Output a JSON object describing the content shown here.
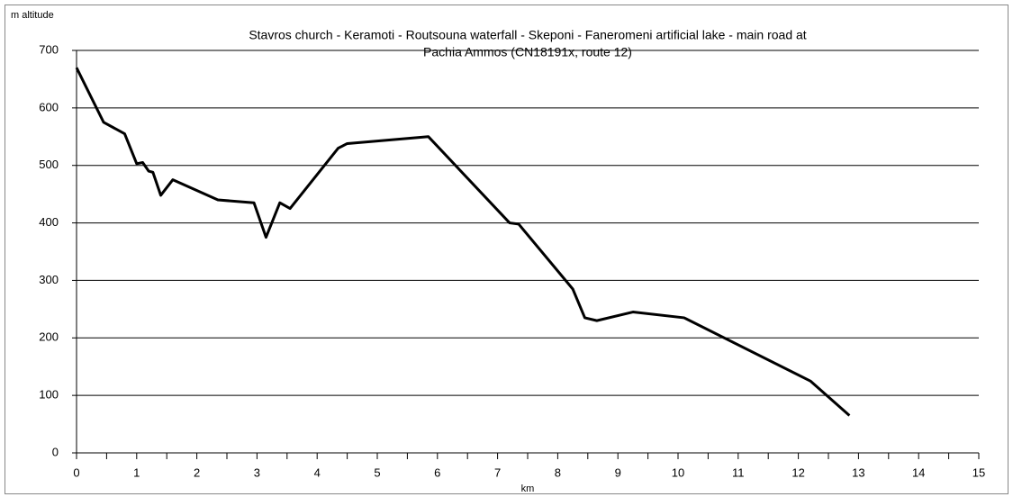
{
  "chart_data": {
    "type": "line",
    "title": [
      "Stavros church - Keramoti - Routsouna waterfall - Skeponi - Faneromeni artificial lake - main road at",
      "Pachia Ammos (CN18191x, route 12)"
    ],
    "y_label": "m altitude",
    "x_label": "km",
    "x": [
      0,
      0.45,
      0.8,
      1.0,
      1.1,
      1.2,
      1.27,
      1.4,
      1.6,
      2.35,
      2.95,
      3.15,
      3.38,
      3.55,
      4.35,
      4.5,
      5.85,
      7.2,
      7.35,
      8.25,
      8.45,
      8.65,
      9.25,
      10.1,
      12.2,
      12.85
    ],
    "series": [
      {
        "color": "#000000",
        "values": [
          670,
          575,
          555,
          503,
          505,
          490,
          488,
          448,
          475,
          440,
          435,
          375,
          435,
          425,
          530,
          538,
          550,
          400,
          398,
          285,
          235,
          230,
          245,
          235,
          125,
          65
        ]
      }
    ],
    "xlim": [
      0,
      15
    ],
    "xticks": [
      0,
      1,
      2,
      3,
      4,
      5,
      6,
      7,
      8,
      9,
      10,
      11,
      12,
      13,
      14,
      15
    ],
    "ylim": [
      0,
      700
    ],
    "yticks": [
      0,
      100,
      200,
      300,
      400,
      500,
      600,
      700
    ],
    "grid": true
  }
}
